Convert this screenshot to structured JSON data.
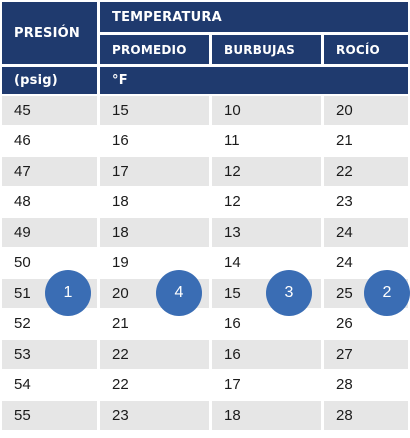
{
  "header": {
    "presion": "PRESIÓN",
    "temperatura": "TEMPERATURA",
    "promedio": "PROMEDIO",
    "burbujas": "BURBUJAS",
    "rocio": "ROCÍO",
    "psig": "(psig)",
    "unit_f": "°F"
  },
  "rows": [
    [
      "45",
      "15",
      "10",
      "20"
    ],
    [
      "46",
      "16",
      "11",
      "21"
    ],
    [
      "47",
      "17",
      "12",
      "22"
    ],
    [
      "48",
      "18",
      "12",
      "23"
    ],
    [
      "49",
      "18",
      "13",
      "24"
    ],
    [
      "50",
      "19",
      "14",
      "24"
    ],
    [
      "51",
      "20",
      "15",
      "25"
    ],
    [
      "52",
      "21",
      "16",
      "26"
    ],
    [
      "53",
      "22",
      "16",
      "27"
    ],
    [
      "54",
      "22",
      "17",
      "28"
    ],
    [
      "55",
      "23",
      "18",
      "28"
    ]
  ],
  "badges": [
    "1",
    "4",
    "3",
    "2"
  ],
  "colors": {
    "header_bg": "#1f3a6e",
    "stripe": "#e6e6e6",
    "badge": "#3a6db4"
  }
}
